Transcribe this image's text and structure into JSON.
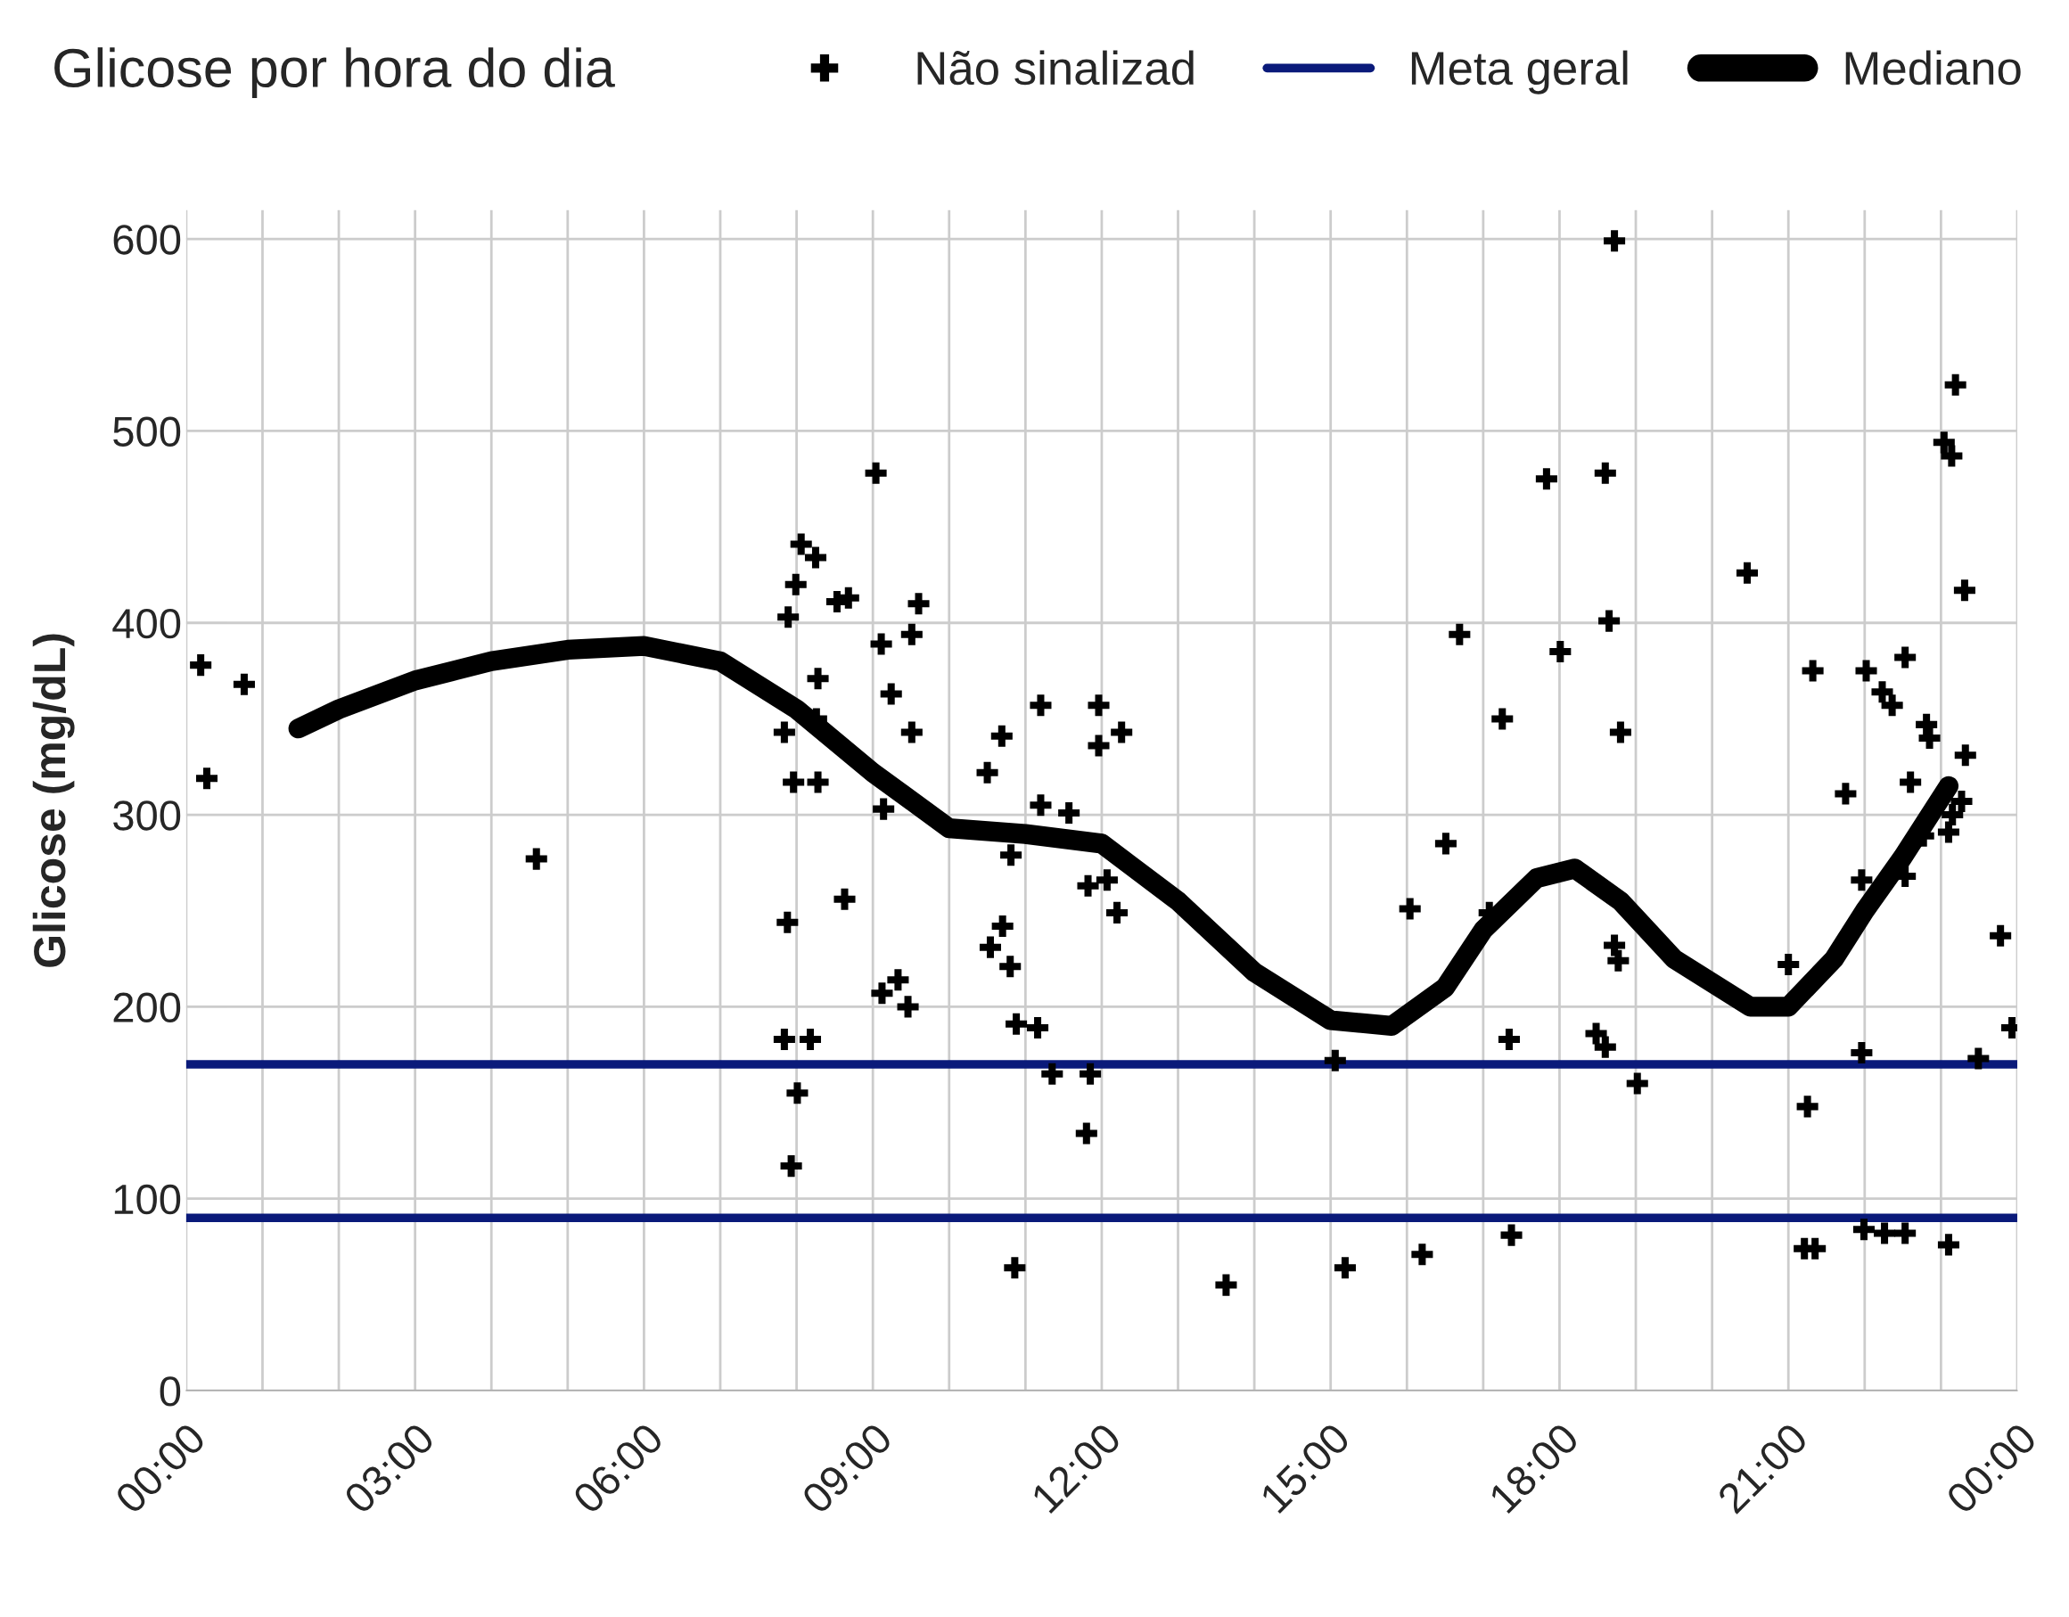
{
  "chart_data": {
    "type": "scatter",
    "title": "Glicose por hora do dia",
    "ylabel": "Glicose (mg/dL)",
    "xlim": [
      0,
      24
    ],
    "ylim": [
      0,
      615
    ],
    "xticks": [
      {
        "value": 0,
        "label": "00:00"
      },
      {
        "value": 1,
        "label": null
      },
      {
        "value": 2,
        "label": null
      },
      {
        "value": 3,
        "label": "03:00"
      },
      {
        "value": 4,
        "label": null
      },
      {
        "value": 5,
        "label": null
      },
      {
        "value": 6,
        "label": "06:00"
      },
      {
        "value": 7,
        "label": null
      },
      {
        "value": 8,
        "label": null
      },
      {
        "value": 9,
        "label": "09:00"
      },
      {
        "value": 10,
        "label": null
      },
      {
        "value": 11,
        "label": null
      },
      {
        "value": 12,
        "label": "12:00"
      },
      {
        "value": 13,
        "label": null
      },
      {
        "value": 14,
        "label": null
      },
      {
        "value": 15,
        "label": "15:00"
      },
      {
        "value": 16,
        "label": null
      },
      {
        "value": 17,
        "label": null
      },
      {
        "value": 18,
        "label": "18:00"
      },
      {
        "value": 19,
        "label": null
      },
      {
        "value": 20,
        "label": null
      },
      {
        "value": 21,
        "label": "21:00"
      },
      {
        "value": 22,
        "label": null
      },
      {
        "value": 23,
        "label": null
      },
      {
        "value": 24,
        "label": "00:00"
      }
    ],
    "yticks": [
      0,
      100,
      200,
      300,
      400,
      500,
      600
    ],
    "grid": true,
    "legend": "top right",
    "series": [
      {
        "name": "Não sinalizad",
        "marker": "cross",
        "color": "#000000",
        "x": [
          0.19,
          0.27,
          0.76,
          4.59,
          7.84,
          7.88,
          7.89,
          7.84,
          7.96,
          7.99,
          8.06,
          8.01,
          7.93,
          8.18,
          8.25,
          8.28,
          8.26,
          8.28,
          8.53,
          8.68,
          8.63,
          9.04,
          9.11,
          9.14,
          9.24,
          9.12,
          9.33,
          9.46,
          9.51,
          9.6,
          9.51,
          10.5,
          10.54,
          10.7,
          10.69,
          10.8,
          10.81,
          10.88,
          10.86,
          11.16,
          11.2,
          11.2,
          11.35,
          11.57,
          11.8,
          11.85,
          11.82,
          11.96,
          11.96,
          12.07,
          12.2,
          12.26,
          13.63,
          15.06,
          15.19,
          16.04,
          16.2,
          16.51,
          16.69,
          17.08,
          17.25,
          17.34,
          17.37,
          17.83,
          18.01,
          18.48,
          18.6,
          18.6,
          18.65,
          18.72,
          18.77,
          18.72,
          18.8,
          19.02,
          20.46,
          21.0,
          21.25,
          21.32,
          21.21,
          21.35,
          21.75,
          21.96,
          21.96,
          22.02,
          21.99,
          22.23,
          22.26,
          22.36,
          22.53,
          22.53,
          22.53,
          22.6,
          22.77,
          22.81,
          22.85,
          23.1,
          23.1,
          23.15,
          23.27,
          23.32,
          23.04,
          23.14,
          23.19,
          23.31,
          23.49,
          23.78,
          23.93
        ],
        "values": [
          378,
          319,
          368,
          277,
          183,
          244,
          403,
          343,
          317,
          420,
          441,
          155,
          117,
          183,
          434,
          371,
          350,
          317,
          411,
          413,
          256,
          478,
          389,
          303,
          363,
          207,
          214,
          200,
          394,
          410,
          343,
          322,
          231,
          242,
          341,
          221,
          279,
          191,
          64,
          189,
          357,
          305,
          165,
          301,
          134,
          165,
          263,
          357,
          336,
          266,
          249,
          343,
          55,
          172,
          64,
          251,
          71,
          285,
          394,
          249,
          350,
          183,
          81,
          475,
          385,
          186,
          179,
          478,
          401,
          232,
          224,
          599,
          343,
          160,
          426,
          222,
          148,
          375,
          74,
          74,
          311,
          266,
          176,
          375,
          84,
          364,
          82,
          357,
          382,
          82,
          268,
          317,
          289,
          347,
          340,
          76,
          291,
          300,
          307,
          331,
          494,
          487,
          524,
          417,
          173,
          237,
          189
        ]
      },
      {
        "name": "Mediano",
        "type": "line",
        "color": "#000000",
        "line_style": "solid",
        "x": [
          1.47,
          2,
          3,
          4,
          5,
          6,
          7,
          8,
          9,
          10,
          11,
          12,
          13,
          14,
          15,
          15.8,
          16.5,
          17,
          17.7,
          18.2,
          18.8,
          19.5,
          20.5,
          21,
          21.6,
          22,
          22.5,
          23.1
        ],
        "values": [
          345,
          355,
          370,
          380,
          386,
          388,
          380,
          355,
          322,
          293,
          290,
          285,
          255,
          218,
          193,
          190,
          210,
          240,
          267,
          272,
          255,
          225,
          200,
          200,
          225,
          250,
          278,
          315
        ]
      }
    ],
    "ref_lines": [
      {
        "axis": "y",
        "value": 170,
        "label": "Meta geral",
        "color": "#0a1a7a"
      },
      {
        "axis": "y",
        "value": 90,
        "color": "#0a1a7a"
      }
    ]
  }
}
